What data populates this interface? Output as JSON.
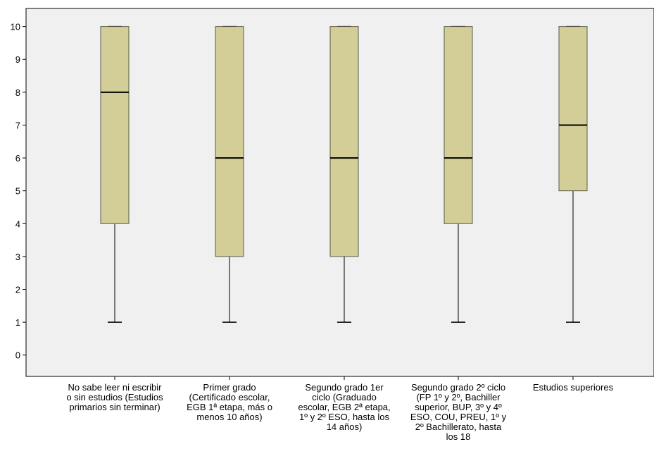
{
  "chart_data": {
    "type": "box",
    "categories": [
      "No sabe leer ni escribir\no sin estudios (Estudios\nprimarios sin terminar)",
      "Primer grado\n(Certificado escolar,\nEGB 1ª etapa, más o\nmenos 10 años)",
      "Segundo grado 1er\nciclo (Graduado\nescolar, EGB 2ª etapa,\n1º y 2º ESO, hasta los\n14 años)",
      "Segundo grado 2º ciclo\n(FP 1º y 2º, Bachiller\nsuperior, BUP, 3º y 4º\nESO, COU, PREU, 1º y\n2º Bachillerato, hasta\nlos 18",
      "Estudios superiores"
    ],
    "boxes": [
      {
        "min": 1,
        "q1": 4,
        "median": 8,
        "q3": 10,
        "max": 10
      },
      {
        "min": 1,
        "q1": 3,
        "median": 6,
        "q3": 10,
        "max": 10
      },
      {
        "min": 1,
        "q1": 3,
        "median": 6,
        "q3": 10,
        "max": 10
      },
      {
        "min": 1,
        "q1": 4,
        "median": 6,
        "q3": 10,
        "max": 10
      },
      {
        "min": 1,
        "q1": 5,
        "median": 7,
        "q3": 10,
        "max": 10
      }
    ],
    "y_ticks": [
      0,
      1,
      2,
      3,
      4,
      5,
      6,
      7,
      8,
      9,
      10
    ],
    "ylim": [
      -0.65,
      10.55
    ],
    "grid": false,
    "colors": {
      "plot_background": "#f0f0f0",
      "box_fill": "#d3ce97",
      "box_stroke": "#5a5a4a",
      "axis": "#000000"
    }
  }
}
